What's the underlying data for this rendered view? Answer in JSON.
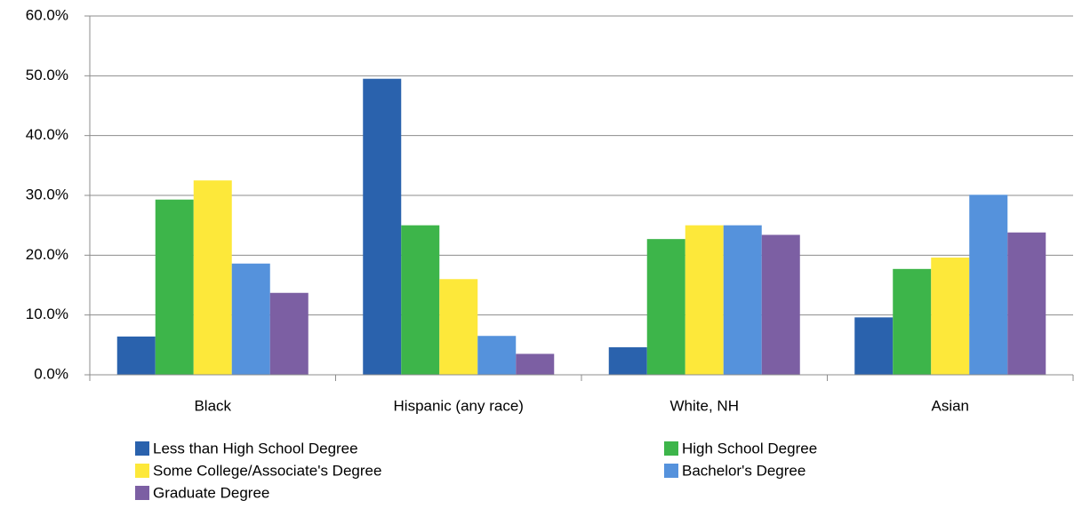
{
  "chart_data": {
    "type": "bar",
    "categories": [
      "Black",
      "Hispanic (any race)",
      "White, NH",
      "Asian"
    ],
    "series": [
      {
        "name": "Less than High School Degree",
        "color": "#2a62ad",
        "values": [
          6.4,
          49.5,
          4.6,
          9.6
        ]
      },
      {
        "name": "High School Degree",
        "color": "#3db54a",
        "values": [
          29.3,
          25.0,
          22.7,
          17.7
        ]
      },
      {
        "name": "Some College/Associate's Degree",
        "color": "#fde83a",
        "values": [
          32.5,
          16.0,
          25.0,
          19.6
        ]
      },
      {
        "name": "Bachelor's Degree",
        "color": "#5592dc",
        "values": [
          18.6,
          6.5,
          25.0,
          30.1
        ]
      },
      {
        "name": "Graduate Degree",
        "color": "#7c5fa3",
        "values": [
          13.7,
          3.5,
          23.4,
          23.8
        ]
      }
    ],
    "ylim": [
      0,
      60
    ],
    "yticks": [
      {
        "value": 0,
        "label": "0.0%"
      },
      {
        "value": 10,
        "label": "10.0%"
      },
      {
        "value": 20,
        "label": "20.0%"
      },
      {
        "value": 30,
        "label": "30.0%"
      },
      {
        "value": 40,
        "label": "40.0%"
      },
      {
        "value": 50,
        "label": "50.0%"
      },
      {
        "value": 60,
        "label": "60.0%"
      }
    ],
    "grid": true,
    "legend": "bottom"
  }
}
